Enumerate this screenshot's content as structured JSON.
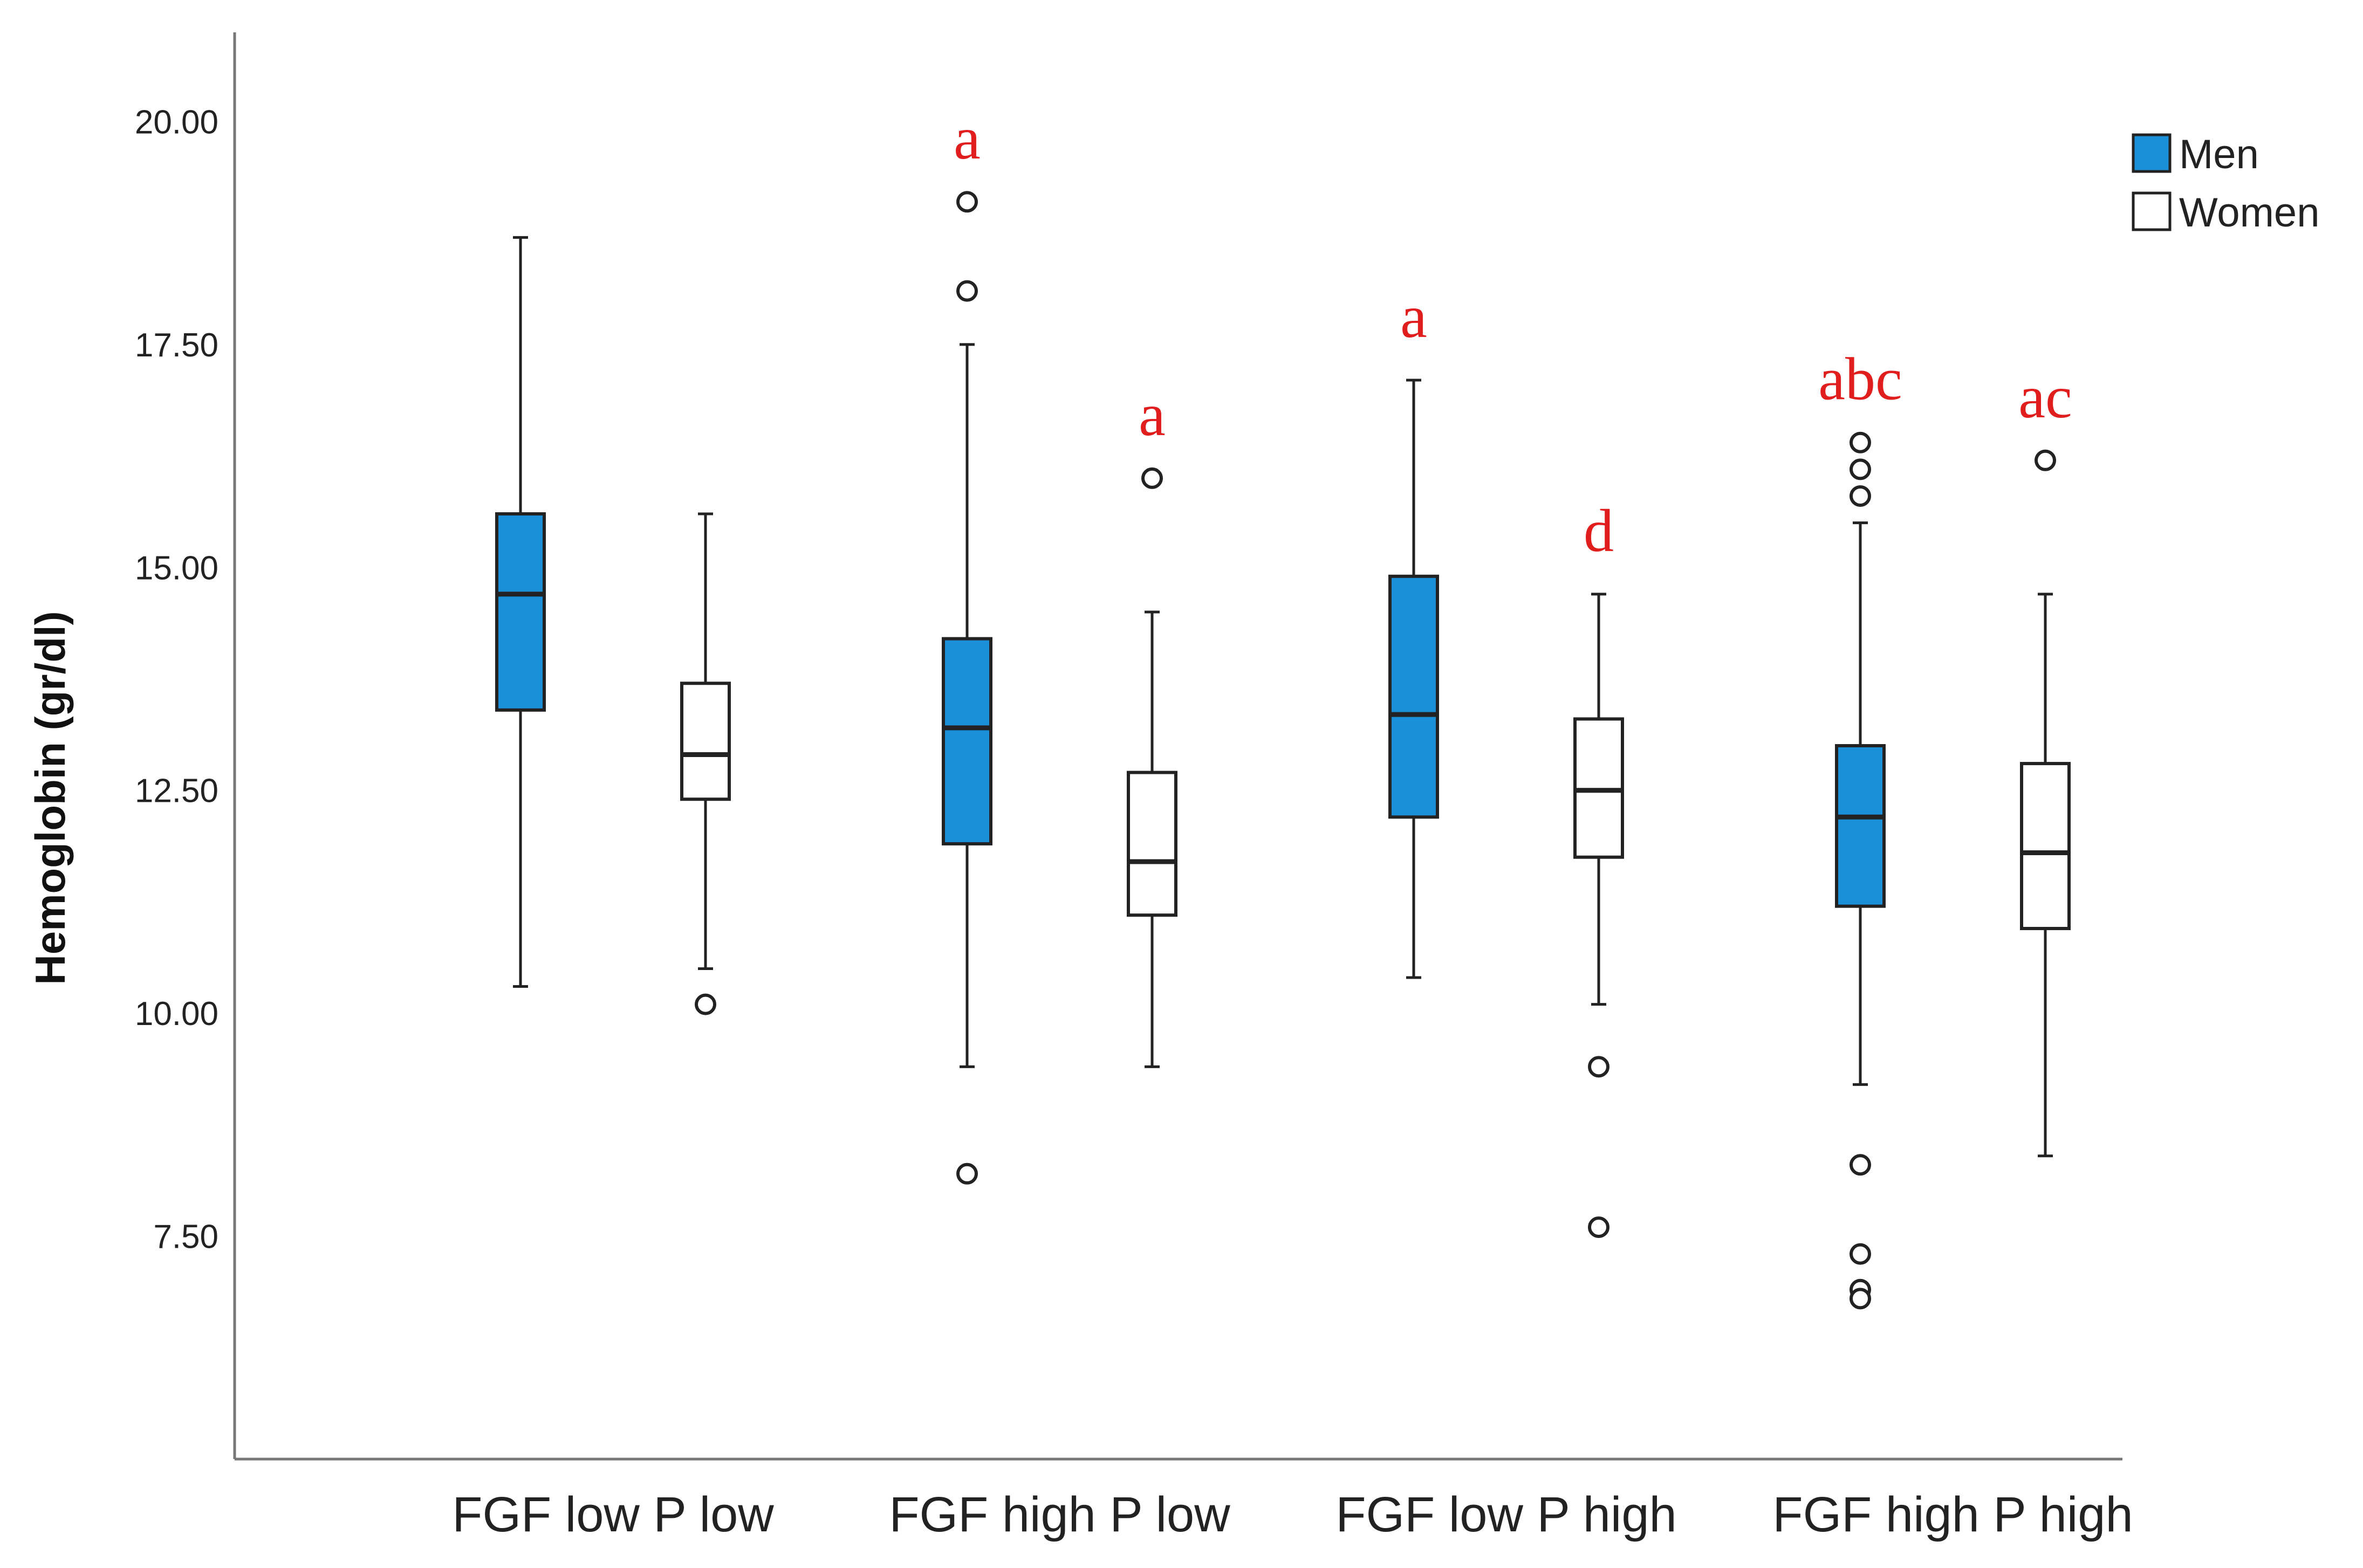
{
  "chart_data": {
    "type": "boxplot",
    "title": "",
    "xlabel": "",
    "ylabel": "Hemoglobin (gr/dl)",
    "ylim": [
      5.0,
      21.0
    ],
    "yticks": [
      "7.50",
      "10.00",
      "12.50",
      "15.00",
      "17.50",
      "20.00"
    ],
    "categories": [
      "FGF low P low",
      "FGF high P low",
      "FGF low P high",
      "FGF high P high"
    ],
    "legend": {
      "position": "top-right",
      "entries": [
        "Men",
        "Women"
      ]
    },
    "colors": {
      "Men": "#1b8fd8",
      "Women": "#ffffff",
      "annotation": "#e01e1e",
      "axis": "#777777",
      "stroke": "#222222"
    },
    "series": [
      {
        "name": "Men",
        "boxes": [
          {
            "min": 10.3,
            "q1": 13.4,
            "median": 14.7,
            "q3": 15.6,
            "max": 18.7,
            "outliers": [],
            "label": ""
          },
          {
            "min": 9.4,
            "q1": 11.9,
            "median": 13.2,
            "q3": 14.2,
            "max": 17.5,
            "outliers": [
              19.1,
              18.1,
              8.2
            ],
            "label": "a"
          },
          {
            "min": 10.4,
            "q1": 12.2,
            "median": 13.35,
            "q3": 14.9,
            "max": 17.1,
            "outliers": [],
            "label": "a"
          },
          {
            "min": 9.2,
            "q1": 11.2,
            "median": 12.2,
            "q3": 13.0,
            "max": 15.5,
            "outliers": [
              16.4,
              16.1,
              15.8,
              8.3,
              7.3,
              6.9,
              6.8
            ],
            "label": "abc"
          }
        ]
      },
      {
        "name": "Women",
        "boxes": [
          {
            "min": 10.5,
            "q1": 12.4,
            "median": 12.9,
            "q3": 13.7,
            "max": 15.6,
            "outliers": [
              10.1
            ],
            "label": ""
          },
          {
            "min": 9.4,
            "q1": 11.1,
            "median": 11.7,
            "q3": 12.7,
            "max": 14.5,
            "outliers": [
              16.0
            ],
            "label": "a"
          },
          {
            "min": 10.1,
            "q1": 11.75,
            "median": 12.5,
            "q3": 13.3,
            "max": 14.7,
            "outliers": [
              9.4,
              7.6
            ],
            "label": "d"
          },
          {
            "min": 8.4,
            "q1": 10.95,
            "median": 11.8,
            "q3": 12.8,
            "max": 14.7,
            "outliers": [
              16.2
            ],
            "label": "ac"
          }
        ]
      }
    ]
  }
}
